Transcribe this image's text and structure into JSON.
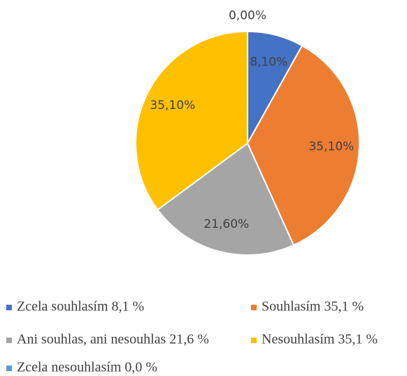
{
  "chart_data": {
    "type": "pie",
    "categories": [
      "Zcela souhlasím 8,1 %",
      "Souhlasím 35,1 %",
      "Ani souhlas, ani nesouhlas 21,6 %",
      "Nesouhlasím 35,1 %",
      "Zcela nesouhlasím 0,0 %"
    ],
    "values": [
      8.1,
      35.1,
      21.6,
      35.1,
      0.0
    ],
    "value_labels": [
      "8,10%",
      "35,10%",
      "21,60%",
      "35,10%",
      "0,00%"
    ],
    "colors": [
      "#4472c4",
      "#ed7d31",
      "#a5a5a5",
      "#ffc000",
      "#5b9bd5"
    ],
    "legend": "bottom"
  }
}
